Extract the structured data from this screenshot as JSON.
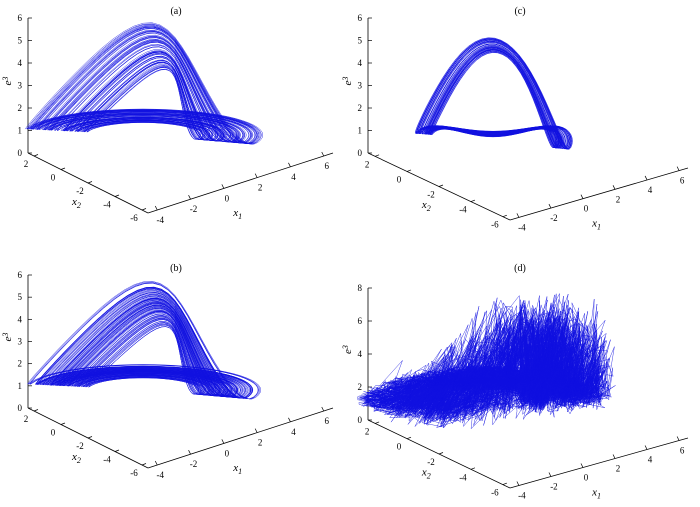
{
  "colors": {
    "trajectory": "#1010e0",
    "axes": "#000000",
    "background": "#ffffff"
  },
  "chart_data": [
    {
      "type": "line",
      "panel_label": "(a)",
      "xlabel": "x",
      "xlabel_sub": "1",
      "ylabel": "x",
      "ylabel_sub": "2",
      "zlabel": "e",
      "zlabel_sub": "3",
      "z_ticks": [
        "0",
        "1",
        "2",
        "3",
        "4",
        "5",
        "6"
      ],
      "x1_ticks": [
        "-4",
        "-2",
        "0",
        "2",
        "4",
        "6"
      ],
      "x2_ticks": [
        "2",
        "0",
        "-2",
        "-4",
        "-6"
      ],
      "zlim": [
        0,
        6
      ],
      "x1lim": [
        -4,
        6
      ],
      "x2lim": [
        -6,
        2
      ],
      "series": [
        {
          "turns": 90,
          "peak_e3": 6.1,
          "style": "single-scroll"
        }
      ]
    },
    {
      "type": "line",
      "panel_label": "(b)",
      "xlabel": "x",
      "xlabel_sub": "1",
      "ylabel": "x",
      "ylabel_sub": "2",
      "zlabel": "e",
      "zlabel_sub": "3",
      "z_ticks": [
        "0",
        "1",
        "2",
        "3",
        "4",
        "5",
        "6"
      ],
      "x1_ticks": [
        "-4",
        "-2",
        "0",
        "2",
        "4",
        "6"
      ],
      "x2_ticks": [
        "2",
        "0",
        "-2",
        "-4",
        "-6"
      ],
      "zlim": [
        0,
        6
      ],
      "x1lim": [
        -4,
        6
      ],
      "x2lim": [
        -6,
        2
      ],
      "series": [
        {
          "turns": 110,
          "peak_e3": 6.1,
          "style": "single-scroll"
        }
      ]
    },
    {
      "type": "line",
      "panel_label": "(c)",
      "xlabel": "x",
      "xlabel_sub": "1",
      "ylabel": "x",
      "ylabel_sub": "2",
      "zlabel": "e",
      "zlabel_sub": "3",
      "z_ticks": [
        "0",
        "1",
        "2",
        "3",
        "4",
        "5",
        "6"
      ],
      "x1_ticks": [
        "-4",
        "-2",
        "0",
        "2",
        "4",
        "6"
      ],
      "x2_ticks": [
        "2",
        "0",
        "-2",
        "-4",
        "-6"
      ],
      "zlim": [
        0,
        6
      ],
      "x1lim": [
        -4,
        6
      ],
      "x2lim": [
        -6,
        2
      ],
      "series": [
        {
          "turns": 60,
          "peak_e3": 5.3,
          "style": "band"
        }
      ]
    },
    {
      "type": "line",
      "panel_label": "(d)",
      "xlabel": "x",
      "xlabel_sub": "1",
      "ylabel": "x",
      "ylabel_sub": "2",
      "zlabel": "e",
      "zlabel_sub": "3",
      "z_ticks": [
        "0",
        "2",
        "4",
        "6",
        "8"
      ],
      "x1_ticks": [
        "-4",
        "-2",
        "0",
        "2",
        "4",
        "6"
      ],
      "x2_ticks": [
        "2",
        "0",
        "-2",
        "-4",
        "-6"
      ],
      "zlim": [
        0,
        8
      ],
      "x1lim": [
        -4,
        6
      ],
      "x2lim": [
        -6,
        2
      ],
      "series": [
        {
          "turns": 140,
          "peak_e3": 7.2,
          "style": "chaotic"
        }
      ]
    }
  ]
}
